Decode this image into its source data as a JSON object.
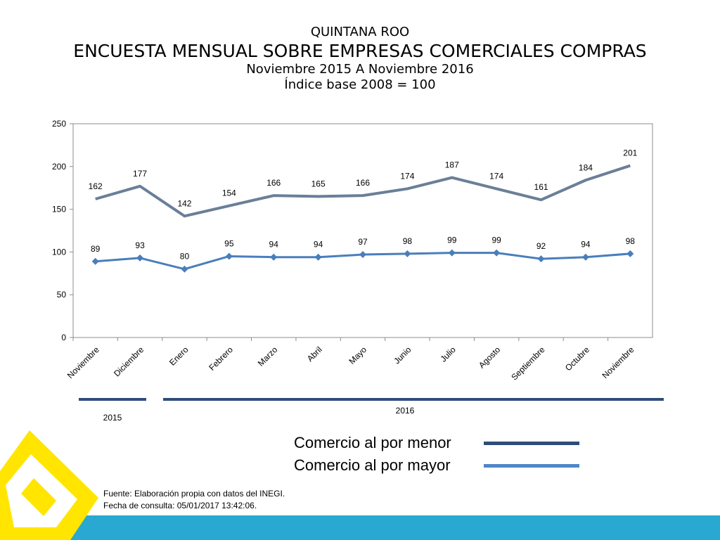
{
  "header": {
    "line1": "QUINTANA ROO",
    "line2": "ENCUESTA MENSUAL SOBRE EMPRESAS COMERCIALES COMPRAS",
    "line3": "Noviembre 2015 A Noviembre 2016",
    "line4": "Índice base 2008 = 100"
  },
  "chart_data": {
    "type": "line",
    "categories": [
      "Noviembre",
      "Diciembre",
      "Enero",
      "Febrero",
      "Marzo",
      "Abril",
      "Mayo",
      "Junio",
      "Julio",
      "Agosto",
      "Septiembre",
      "Octubre",
      "Noviembre"
    ],
    "series": [
      {
        "name": "Comercio al por menor",
        "values": [
          162,
          177,
          142,
          154,
          166,
          165,
          166,
          174,
          187,
          174,
          161,
          184,
          201
        ],
        "color": "#6a7f98",
        "markers": false
      },
      {
        "name": "Comercio al por mayor",
        "values": [
          89,
          93,
          80,
          95,
          94,
          94,
          97,
          98,
          99,
          99,
          92,
          94,
          98
        ],
        "color": "#4a7ebb",
        "markers": true
      }
    ],
    "ylim": [
      0,
      250
    ],
    "yticks": [
      0,
      50,
      100,
      150,
      200,
      250
    ],
    "grid": false,
    "years": [
      {
        "label": "2015",
        "from": 0,
        "to": 1
      },
      {
        "label": "2016",
        "from": 2,
        "to": 12
      }
    ]
  },
  "legend": {
    "items": [
      {
        "label": "Comercio al por menor",
        "color": "#2e4d7a"
      },
      {
        "label": "Comercio al por mayor",
        "color": "#4f86c6"
      }
    ]
  },
  "source": {
    "line1": "Fuente: Elaboración propia con datos del INEGI.",
    "line2": "Fecha de consulta: 05/01/2017  13:42:06."
  },
  "colors": {
    "axis": "#8c8c8c",
    "year_bar": "#2e4d7a",
    "band": "#29a9d2",
    "logo": "#ffe500"
  },
  "logo": {
    "icon": "yellow-diamond-logo-icon"
  }
}
